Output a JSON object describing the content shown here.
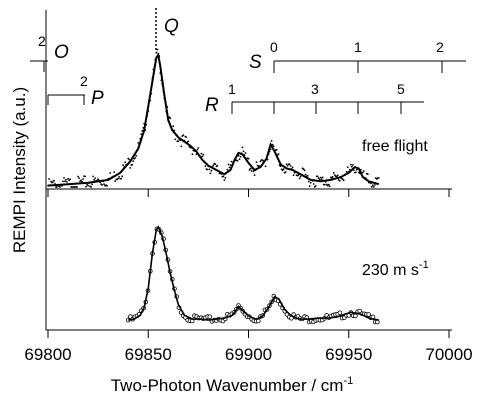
{
  "chart_data": {
    "type": "line",
    "xlabel": "Two-Photon Wavenumber / cm",
    "xlabel_sup": "-1",
    "ylabel": "REMPI Intensity (a.u.)",
    "xlim": [
      69800,
      70000
    ],
    "xticks": [
      69800,
      69850,
      69900,
      69950,
      70000
    ],
    "xtick_labels": [
      "69800",
      "69850",
      "69900",
      "69950",
      "70000"
    ],
    "panels": [
      {
        "annotation": "free flight",
        "points_style": "dots",
        "fit_line": true,
        "series": [
          {
            "x": [
              69800,
              69810,
              69820,
              69830,
              69836,
              69841,
              69845,
              69848,
              69850,
              69852,
              69854,
              69855,
              69856,
              69858,
              69860,
              69862,
              69865,
              69868,
              69871,
              69874,
              69877,
              69880,
              69884,
              69888,
              69891,
              69893,
              69895,
              69897,
              69900,
              69903,
              69906,
              69909,
              69911,
              69913,
              69916,
              69919,
              69922,
              69926,
              69931,
              69936,
              69941,
              69946,
              69950,
              69953,
              69955,
              69957,
              69960,
              69965
            ],
            "y": [
              0.01,
              0.02,
              0.03,
              0.05,
              0.1,
              0.18,
              0.27,
              0.4,
              0.57,
              0.74,
              0.91,
              0.93,
              0.85,
              0.65,
              0.47,
              0.4,
              0.35,
              0.32,
              0.29,
              0.25,
              0.19,
              0.15,
              0.12,
              0.09,
              0.12,
              0.19,
              0.24,
              0.23,
              0.17,
              0.12,
              0.14,
              0.2,
              0.3,
              0.25,
              0.16,
              0.13,
              0.12,
              0.09,
              0.05,
              0.04,
              0.05,
              0.07,
              0.1,
              0.14,
              0.13,
              0.07,
              0.04,
              0.02
            ]
          }
        ]
      },
      {
        "annotation": "230 m s",
        "annotation_sup": "-1",
        "points_style": "open-circles",
        "fit_line": true,
        "series": [
          {
            "x": [
              69840,
              69843,
              69846,
              69848,
              69850,
              69852,
              69854,
              69855,
              69857,
              69859,
              69861,
              69863,
              69865,
              69868,
              69872,
              69876,
              69880,
              69884,
              69888,
              69892,
              69895,
              69898,
              69901,
              69904,
              69907,
              69910,
              69913,
              69915,
              69918,
              69921,
              69925,
              69930,
              69935,
              69940,
              69944,
              69948,
              69951,
              69954,
              69956,
              69959,
              69962,
              69965
            ],
            "y": [
              0.02,
              0.03,
              0.07,
              0.15,
              0.35,
              0.7,
              0.95,
              0.98,
              0.88,
              0.7,
              0.5,
              0.33,
              0.18,
              0.07,
              0.03,
              0.03,
              0.02,
              0.03,
              0.04,
              0.07,
              0.16,
              0.1,
              0.05,
              0.03,
              0.06,
              0.15,
              0.26,
              0.24,
              0.13,
              0.07,
              0.03,
              0.03,
              0.04,
              0.04,
              0.05,
              0.08,
              0.1,
              0.09,
              0.08,
              0.05,
              0.03,
              0.02
            ]
          }
        ]
      }
    ],
    "branches": [
      {
        "letter": "O",
        "ticks": [
          {
            "x": 69799,
            "label": "2"
          }
        ]
      },
      {
        "letter": "P",
        "ticks": [
          {
            "x": 69800,
            "label": ""
          },
          {
            "x": 69818,
            "label": "2"
          }
        ]
      },
      {
        "letter": "Q",
        "ticks": [
          {
            "x": 69855,
            "label": ""
          }
        ]
      },
      {
        "letter": "R",
        "ticks": [
          {
            "x": 69892,
            "label": "1"
          },
          {
            "x": 69912,
            "label": ""
          },
          {
            "x": 69933,
            "label": "3"
          },
          {
            "x": 69954,
            "label": ""
          },
          {
            "x": 69975,
            "label": "5"
          }
        ]
      },
      {
        "letter": "S",
        "ticks": [
          {
            "x": 69912,
            "label": "0"
          },
          {
            "x": 69954,
            "label": "1"
          },
          {
            "x": 69995,
            "label": "2"
          }
        ]
      }
    ]
  }
}
